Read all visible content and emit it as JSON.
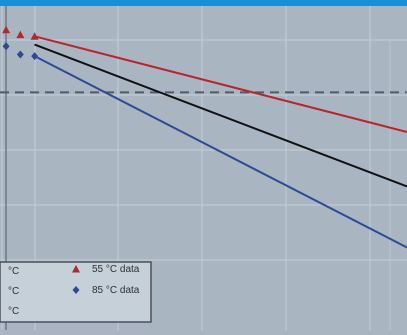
{
  "chart_data": {
    "type": "line",
    "title": "",
    "xlabel": "",
    "ylabel": "",
    "grid": true,
    "legend_position": "bottom-left",
    "colors": {
      "background": "#a9b6c2",
      "frame_top": "#1a8fd6",
      "grid": "#c3cdd6",
      "axis": "#5f6a74",
      "reference": "#555b60",
      "series_55": "#b8252a",
      "series_85": "#2d4a94",
      "fit_middle": "#111111",
      "legend_bg": "#c6d0d9",
      "legend_border": "#4a5058"
    },
    "xlim": [
      0,
      100
    ],
    "ylim": [
      0,
      100
    ],
    "reference_line": {
      "y": 72
    },
    "series": [
      {
        "legend": "55 °C data",
        "marker": "triangle",
        "color_key": "series_55",
        "points": [
          [
            1.5,
            91
          ],
          [
            5,
            89.5
          ],
          [
            8.5,
            89
          ]
        ],
        "fit": [
          [
            8.5,
            89
          ],
          [
            100,
            60
          ]
        ]
      },
      {
        "legend": "",
        "marker": "none",
        "color_key": "fit_middle",
        "points": [],
        "fit": [
          [
            8.5,
            86.5
          ],
          [
            100,
            43.5
          ]
        ]
      },
      {
        "legend": "85 °C data",
        "marker": "diamond",
        "color_key": "series_85",
        "points": [
          [
            1.5,
            86
          ],
          [
            5,
            83.5
          ],
          [
            8.5,
            83
          ]
        ],
        "fit": [
          [
            8.5,
            83
          ],
          [
            100,
            25
          ]
        ]
      }
    ],
    "legend": {
      "left_fragments": [
        "°C",
        "°C",
        "°C"
      ],
      "entries": [
        "55 °C data",
        "85 °C data"
      ]
    }
  }
}
